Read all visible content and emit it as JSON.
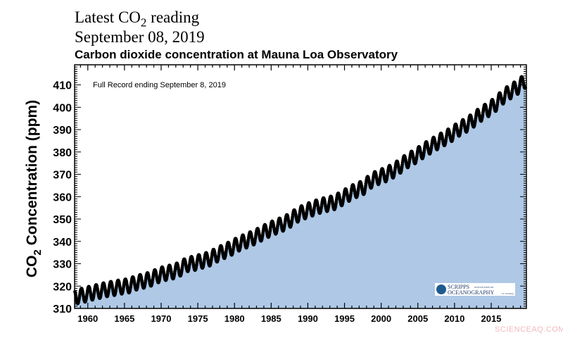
{
  "header": {
    "line1_pre": "Latest CO",
    "line1_sub": "2",
    "line1_post": " reading",
    "line2": "September 08, 2019"
  },
  "watermark": "SCIENCEAQ.COM",
  "logo": {
    "text1": "SCRIPPS",
    "text2": "INSTITUTION OF",
    "text3": "OCEANOGRAPHY",
    "text4": "UC San Diego"
  },
  "chart_data": {
    "type": "scatter",
    "title": "Carbon dioxide concentration at Mauna Loa Observatory",
    "annotation": "Full Record ending September 8, 2019",
    "ylabel_pre": "CO",
    "ylabel_sub": "2",
    "ylabel_post": " Concentration (ppm)",
    "xlabel": "",
    "xlim": [
      1958.2,
      2019.8
    ],
    "ylim": [
      310,
      419
    ],
    "xticks": [
      1960,
      1965,
      1970,
      1975,
      1980,
      1985,
      1990,
      1995,
      2000,
      2005,
      2010,
      2015
    ],
    "yticks": [
      310,
      320,
      330,
      340,
      350,
      360,
      370,
      380,
      390,
      400,
      410
    ],
    "fill_color": "#aec8e6",
    "marker_color": "#000000",
    "grid": false,
    "seasonal_amplitude_ppm": 3.2,
    "annual_mean": {
      "years": [
        1958,
        1959,
        1960,
        1961,
        1962,
        1963,
        1964,
        1965,
        1966,
        1967,
        1968,
        1969,
        1970,
        1971,
        1972,
        1973,
        1974,
        1975,
        1976,
        1977,
        1978,
        1979,
        1980,
        1981,
        1982,
        1983,
        1984,
        1985,
        1986,
        1987,
        1988,
        1989,
        1990,
        1991,
        1992,
        1993,
        1994,
        1995,
        1996,
        1997,
        1998,
        1999,
        2000,
        2001,
        2002,
        2003,
        2004,
        2005,
        2006,
        2007,
        2008,
        2009,
        2010,
        2011,
        2012,
        2013,
        2014,
        2015,
        2016,
        2017,
        2018,
        2019
      ],
      "ppm": [
        315.3,
        315.98,
        316.91,
        317.64,
        318.45,
        318.99,
        319.62,
        320.04,
        321.37,
        322.18,
        323.05,
        324.62,
        325.68,
        326.32,
        327.46,
        329.68,
        330.19,
        331.13,
        332.03,
        333.84,
        335.41,
        336.84,
        338.76,
        340.12,
        341.48,
        343.15,
        344.87,
        346.35,
        347.61,
        349.31,
        351.69,
        353.2,
        354.45,
        355.7,
        356.54,
        357.21,
        358.96,
        360.97,
        362.74,
        363.88,
        366.84,
        368.54,
        369.71,
        371.32,
        373.45,
        375.98,
        377.7,
        379.98,
        382.09,
        384.02,
        385.83,
        387.64,
        390.1,
        391.85,
        394.06,
        396.74,
        398.81,
        401.01,
        404.41,
        406.76,
        408.72,
        411.4
      ]
    }
  }
}
